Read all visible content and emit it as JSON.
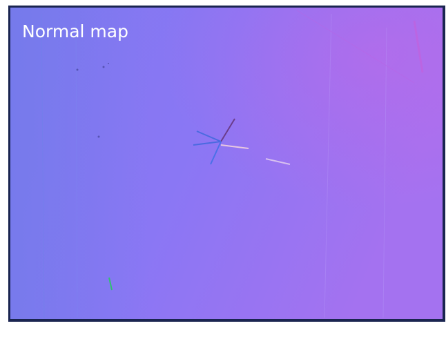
{
  "image": {
    "label": "Normal map"
  }
}
